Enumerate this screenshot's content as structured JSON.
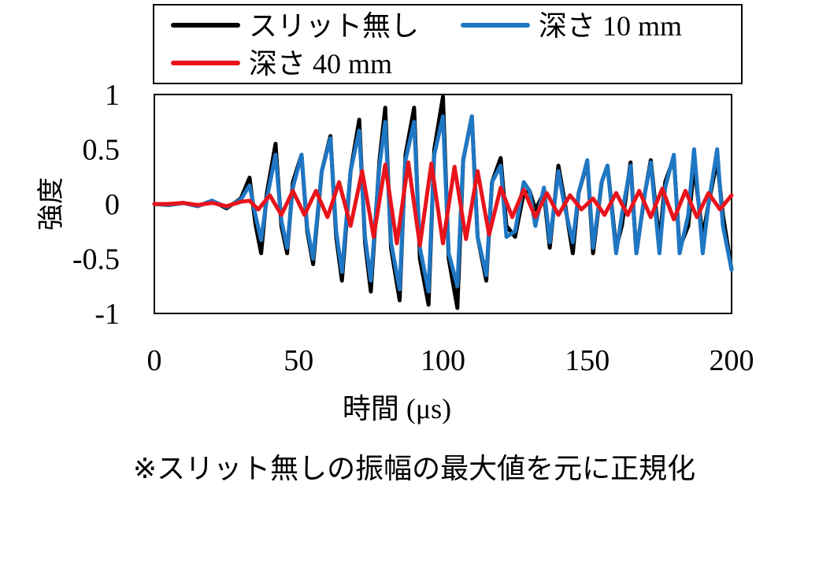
{
  "note": "※スリット無しの振幅の最大値を元に正規化",
  "chart_data": {
    "type": "line",
    "title": "",
    "xlabel": "時間 (μs)",
    "ylabel": "強度",
    "xlim": [
      0,
      200
    ],
    "ylim": [
      -1,
      1
    ],
    "xticks": [
      0,
      50,
      100,
      150,
      200
    ],
    "xtick_labels": [
      "0",
      "50",
      "100",
      "150",
      "200"
    ],
    "yticks": [
      1,
      0.5,
      0,
      -0.5,
      -1
    ],
    "ytick_labels": [
      "1",
      "0.5",
      "0",
      "-0.5",
      "-1"
    ],
    "grid": false,
    "legend_position": "top",
    "legend": [
      {
        "label": "スリット無し",
        "color": "#000000"
      },
      {
        "label": "深さ 10 mm",
        "color": "#1f77c4"
      },
      {
        "label": "深さ 40 mm",
        "color": "#e8141c"
      }
    ],
    "series": [
      {
        "name": "スリット無し",
        "color": "#000000",
        "x": [
          0,
          5,
          10,
          15,
          20,
          25,
          30,
          33,
          35,
          37,
          39,
          42,
          44,
          46,
          48,
          51,
          53,
          55,
          58,
          61,
          63,
          65,
          68,
          71,
          73,
          75,
          78,
          80,
          82,
          85,
          87,
          90,
          92,
          95,
          97,
          100,
          102,
          105,
          107,
          110,
          112,
          115,
          117,
          120,
          122,
          125,
          128,
          130,
          132,
          135,
          137,
          140,
          142,
          145,
          147,
          150,
          152,
          155,
          157,
          160,
          162,
          165,
          167,
          170,
          172,
          175,
          177,
          180,
          182,
          185,
          187,
          190,
          192,
          195,
          197,
          200
        ],
        "y": [
          0,
          -0.01,
          0.01,
          -0.02,
          0.03,
          -0.04,
          0.05,
          0.24,
          -0.18,
          -0.45,
          0.1,
          0.55,
          -0.2,
          -0.45,
          0.2,
          0.45,
          -0.25,
          -0.55,
          0.3,
          0.62,
          -0.3,
          -0.7,
          0.3,
          0.77,
          -0.35,
          -0.8,
          0.4,
          0.88,
          -0.4,
          -0.88,
          0.45,
          0.88,
          -0.5,
          -0.92,
          0.5,
          0.98,
          -0.5,
          -0.95,
          0.4,
          0.8,
          -0.3,
          -0.7,
          0.2,
          0.42,
          -0.2,
          -0.3,
          0.1,
          0.12,
          -0.05,
          0.1,
          -0.4,
          0.35,
          0.05,
          -0.45,
          0.1,
          0.38,
          -0.45,
          0.2,
          0.35,
          -0.4,
          -0.2,
          0.38,
          -0.45,
          0.1,
          0.4,
          -0.35,
          0.2,
          0.42,
          -0.4,
          -0.2,
          0.35,
          -0.3,
          0.0,
          0.4,
          -0.1,
          -0.6
        ]
      },
      {
        "name": "深さ 10 mm",
        "color": "#1f77c4",
        "x": [
          0,
          5,
          10,
          15,
          20,
          25,
          30,
          33,
          35,
          37,
          39,
          42,
          44,
          46,
          48,
          51,
          53,
          55,
          58,
          61,
          63,
          65,
          68,
          71,
          73,
          75,
          78,
          80,
          82,
          85,
          87,
          90,
          92,
          95,
          97,
          100,
          102,
          105,
          107,
          110,
          112,
          115,
          117,
          120,
          122,
          125,
          128,
          130,
          132,
          135,
          137,
          140,
          142,
          145,
          147,
          150,
          152,
          155,
          157,
          160,
          162,
          165,
          167,
          170,
          172,
          175,
          177,
          180,
          182,
          185,
          187,
          190,
          192,
          195,
          197,
          200
        ],
        "y": [
          0,
          -0.01,
          0.01,
          -0.02,
          0.03,
          -0.03,
          0.04,
          0.17,
          -0.1,
          -0.33,
          0.05,
          0.45,
          -0.15,
          -0.4,
          0.15,
          0.45,
          -0.22,
          -0.5,
          0.3,
          0.6,
          -0.25,
          -0.62,
          0.3,
          0.67,
          -0.3,
          -0.7,
          0.35,
          0.75,
          -0.35,
          -0.78,
          0.4,
          0.75,
          -0.4,
          -0.8,
          0.45,
          0.8,
          -0.45,
          -0.75,
          0.4,
          0.8,
          -0.3,
          -0.65,
          0.2,
          0.35,
          -0.3,
          -0.25,
          0.2,
          0.12,
          -0.2,
          0.15,
          -0.35,
          0.3,
          0.0,
          -0.35,
          0.1,
          0.4,
          -0.4,
          0.2,
          0.35,
          -0.45,
          -0.1,
          0.35,
          -0.45,
          0.1,
          0.38,
          -0.45,
          0.15,
          0.45,
          -0.45,
          -0.1,
          0.5,
          -0.45,
          0.0,
          0.5,
          -0.2,
          -0.6
        ]
      },
      {
        "name": "深さ 40 mm",
        "color": "#e8141c",
        "x": [
          0,
          5,
          10,
          15,
          20,
          25,
          30,
          33,
          36,
          40,
          44,
          48,
          52,
          56,
          60,
          64,
          68,
          72,
          76,
          80,
          84,
          88,
          92,
          96,
          100,
          104,
          108,
          112,
          116,
          120,
          124,
          128,
          132,
          136,
          140,
          144,
          148,
          152,
          156,
          160,
          164,
          168,
          172,
          176,
          180,
          184,
          188,
          192,
          196,
          200
        ],
        "y": [
          0,
          0.0,
          0.01,
          -0.01,
          0.01,
          -0.02,
          0.02,
          0.03,
          -0.05,
          0.08,
          -0.1,
          0.12,
          -0.1,
          0.12,
          -0.12,
          0.2,
          -0.2,
          0.3,
          -0.3,
          0.36,
          -0.36,
          0.38,
          -0.38,
          0.37,
          -0.36,
          0.34,
          -0.32,
          0.3,
          -0.28,
          0.15,
          -0.12,
          0.13,
          -0.12,
          0.1,
          -0.1,
          0.08,
          -0.05,
          0.05,
          -0.1,
          0.1,
          -0.1,
          0.12,
          -0.12,
          0.14,
          -0.14,
          0.12,
          -0.12,
          0.1,
          -0.05,
          0.08
        ]
      }
    ]
  }
}
